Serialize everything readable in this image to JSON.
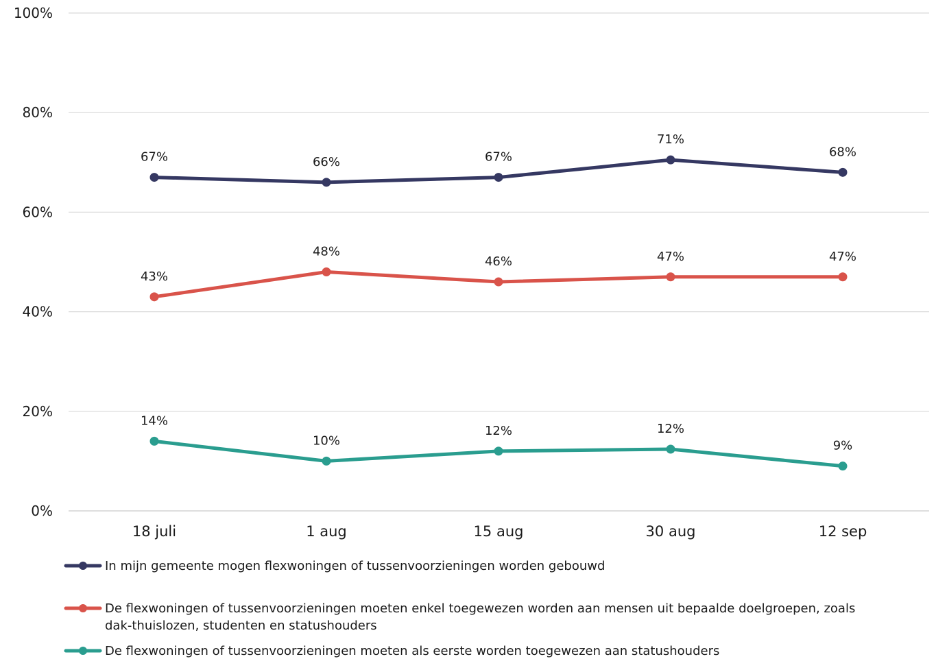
{
  "chart_data": {
    "type": "line",
    "categories": [
      "18 juli",
      "1 aug",
      "15 aug",
      "30 aug",
      "12 sep"
    ],
    "ylim": [
      0,
      100
    ],
    "yticks": [
      0,
      20,
      40,
      60,
      80,
      100
    ],
    "ytick_labels": [
      "0%",
      "20%",
      "40%",
      "60%",
      "80%",
      "100%"
    ],
    "grid": true,
    "legend_position": "bottom",
    "series": [
      {
        "name_lines": [
          "In mijn gemeente mogen flexwoningen of tussenvoorzieningen worden gebouwd"
        ],
        "color": "#353862",
        "values": [
          67,
          66,
          67,
          70.5,
          68
        ],
        "labels": [
          "67%",
          "66%",
          "67%",
          "71%",
          "68%"
        ]
      },
      {
        "name_lines": [
          "De flexwoningen of tussenvoorzieningen moeten enkel toegewezen worden aan mensen uit bepaalde doelgroepen, zoals",
          "dak-thuislozen, studenten en statushouders"
        ],
        "color": "#d9534a",
        "values": [
          43,
          48,
          46,
          47,
          47
        ],
        "labels": [
          "43%",
          "48%",
          "46%",
          "47%",
          "47%"
        ]
      },
      {
        "name_lines": [
          "De flexwoningen of tussenvoorzieningen moeten als eerste worden toegewezen aan statushouders"
        ],
        "color": "#2a9d8f",
        "values": [
          14,
          10,
          12,
          12.4,
          9
        ],
        "labels": [
          "14%",
          "10%",
          "12%",
          "12%",
          "9%"
        ]
      }
    ]
  }
}
